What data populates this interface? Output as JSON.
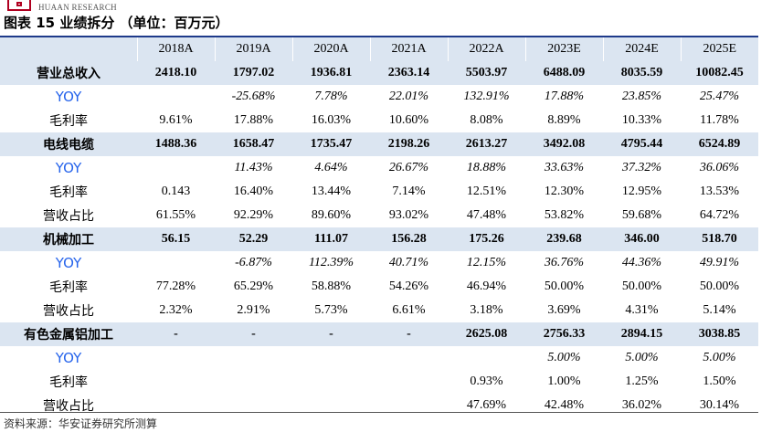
{
  "header": {
    "brand": "HUAAN RESEARCH",
    "title": "图表 15 业绩拆分 （单位：百万元）"
  },
  "table": {
    "years": [
      "2018A",
      "2019A",
      "2020A",
      "2021A",
      "2022A",
      "2023E",
      "2024E",
      "2025E"
    ],
    "rows": [
      {
        "label": "营业总收入",
        "kind": "major",
        "values": [
          "2418.10",
          "1797.02",
          "1936.81",
          "2363.14",
          "5503.97",
          "6488.09",
          "8035.59",
          "10082.45"
        ]
      },
      {
        "label": "YOY",
        "kind": "yoy",
        "values": [
          "",
          "-25.68%",
          "7.78%",
          "22.01%",
          "132.91%",
          "17.88%",
          "23.85%",
          "25.47%"
        ]
      },
      {
        "label": "毛利率",
        "kind": "sub",
        "values": [
          "9.61%",
          "17.88%",
          "16.03%",
          "10.60%",
          "8.08%",
          "8.89%",
          "10.33%",
          "11.78%"
        ]
      },
      {
        "label": "电线电缆",
        "kind": "major",
        "values": [
          "1488.36",
          "1658.47",
          "1735.47",
          "2198.26",
          "2613.27",
          "3492.08",
          "4795.44",
          "6524.89"
        ]
      },
      {
        "label": "YOY",
        "kind": "yoy",
        "values": [
          "",
          "11.43%",
          "4.64%",
          "26.67%",
          "18.88%",
          "33.63%",
          "37.32%",
          "36.06%"
        ]
      },
      {
        "label": "毛利率",
        "kind": "sub",
        "values": [
          "0.143",
          "16.40%",
          "13.44%",
          "7.14%",
          "12.51%",
          "12.30%",
          "12.95%",
          "13.53%"
        ]
      },
      {
        "label": "营收占比",
        "kind": "sub",
        "values": [
          "61.55%",
          "92.29%",
          "89.60%",
          "93.02%",
          "47.48%",
          "53.82%",
          "59.68%",
          "64.72%"
        ]
      },
      {
        "label": "机械加工",
        "kind": "major",
        "values": [
          "56.15",
          "52.29",
          "111.07",
          "156.28",
          "175.26",
          "239.68",
          "346.00",
          "518.70"
        ]
      },
      {
        "label": "YOY",
        "kind": "yoy",
        "values": [
          "",
          "-6.87%",
          "112.39%",
          "40.71%",
          "12.15%",
          "36.76%",
          "44.36%",
          "49.91%"
        ]
      },
      {
        "label": "毛利率",
        "kind": "sub",
        "values": [
          "77.28%",
          "65.29%",
          "58.88%",
          "54.26%",
          "46.94%",
          "50.00%",
          "50.00%",
          "50.00%"
        ]
      },
      {
        "label": "营收占比",
        "kind": "sub",
        "values": [
          "2.32%",
          "2.91%",
          "5.73%",
          "6.61%",
          "3.18%",
          "3.69%",
          "4.31%",
          "5.14%"
        ]
      },
      {
        "label": "有色金属铝加工",
        "kind": "major",
        "values": [
          "-",
          "-",
          "-",
          "-",
          "2625.08",
          "2756.33",
          "2894.15",
          "3038.85"
        ]
      },
      {
        "label": "YOY",
        "kind": "yoy",
        "values": [
          "",
          "",
          "",
          "",
          "",
          "5.00%",
          "5.00%",
          "5.00%"
        ]
      },
      {
        "label": "毛利率",
        "kind": "sub",
        "values": [
          "",
          "",
          "",
          "",
          "0.93%",
          "1.00%",
          "1.25%",
          "1.50%"
        ]
      },
      {
        "label": "营收占比",
        "kind": "sub",
        "values": [
          "",
          "",
          "",
          "",
          "47.69%",
          "42.48%",
          "36.02%",
          "30.14%"
        ]
      }
    ]
  },
  "footer": {
    "source": "资料来源：华安证券研究所测算"
  },
  "colors": {
    "accent_band": "#dbe5f1",
    "rule": "#1e3a8a",
    "yoy_label": "#2563eb",
    "brand": "#b00020"
  }
}
